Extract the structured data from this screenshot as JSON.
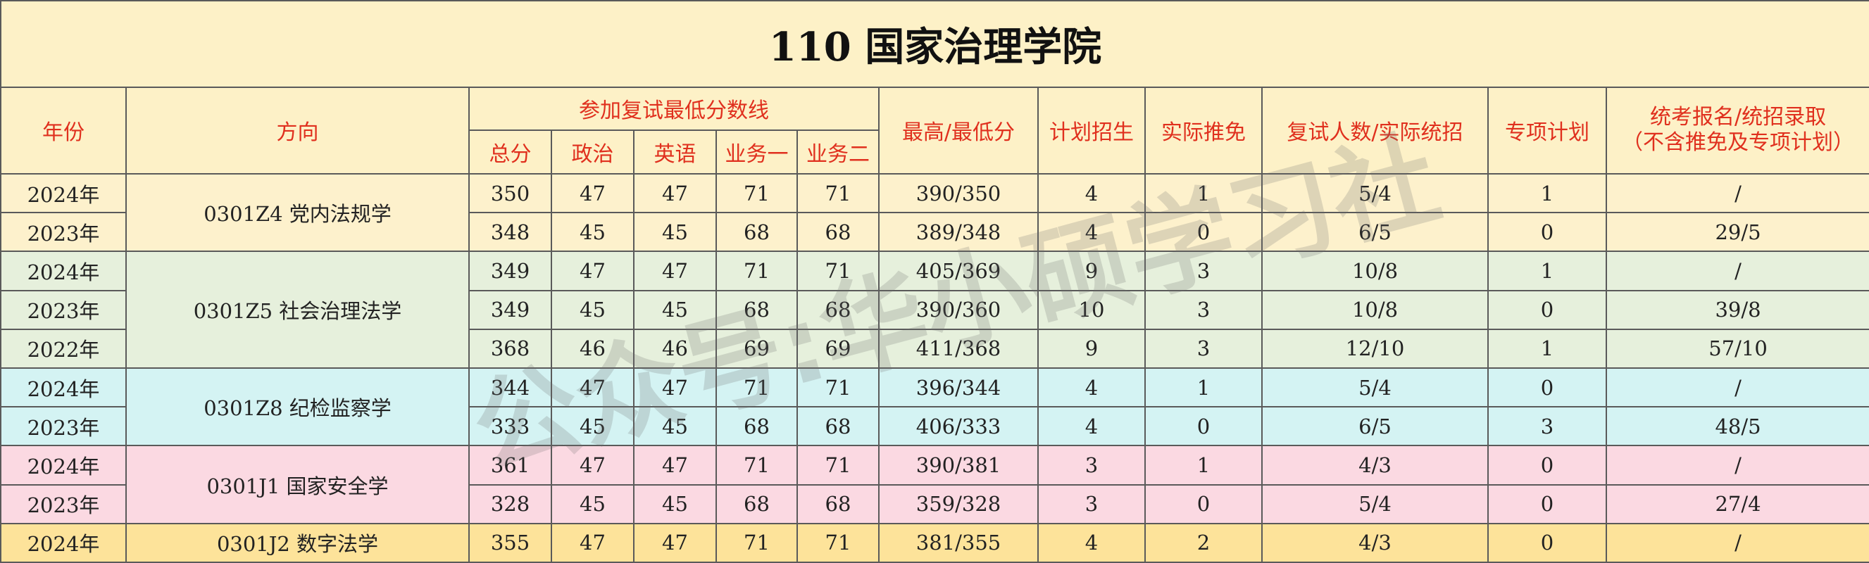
{
  "title": "110  国家治理学院",
  "watermark": "公众号:华小硕学习社",
  "header": {
    "year": "年份",
    "direction": "方向",
    "min_group": "参加复试最低分数线",
    "min_sub": [
      "总分",
      "政治",
      "英语",
      "业务一",
      "业务二"
    ],
    "others": [
      "最高/最低分",
      "计划招生",
      "实际推免",
      "复试人数/实际统招",
      "专项计划"
    ],
    "last": [
      "统考报名/统招录取",
      "（不含推免及专项计划）"
    ]
  },
  "groups": [
    {
      "direction": "0301Z4 党内法规学",
      "rows": [
        [
          "2024年",
          350,
          47,
          47,
          71,
          71,
          "390/350",
          4,
          1,
          "5/4",
          1,
          "/"
        ],
        [
          "2023年",
          348,
          45,
          45,
          68,
          68,
          "389/348",
          4,
          0,
          "6/5",
          0,
          "29/5"
        ]
      ]
    },
    {
      "direction": "0301Z5 社会治理法学",
      "rows": [
        [
          "2024年",
          349,
          47,
          47,
          71,
          71,
          "405/369",
          9,
          3,
          "10/8",
          1,
          "/"
        ],
        [
          "2023年",
          349,
          45,
          45,
          68,
          68,
          "390/360",
          10,
          3,
          "10/8",
          0,
          "39/8"
        ],
        [
          "2022年",
          368,
          46,
          46,
          69,
          69,
          "411/368",
          9,
          3,
          "12/10",
          1,
          "57/10"
        ]
      ]
    },
    {
      "direction": "0301Z8 纪检监察学",
      "rows": [
        [
          "2024年",
          344,
          47,
          47,
          71,
          71,
          "396/344",
          4,
          1,
          "5/4",
          0,
          "/"
        ],
        [
          "2023年",
          333,
          45,
          45,
          68,
          68,
          "406/333",
          4,
          0,
          "6/5",
          3,
          "48/5"
        ]
      ]
    },
    {
      "direction": "0301J1 国家安全学",
      "rows": [
        [
          "2024年",
          361,
          47,
          47,
          71,
          71,
          "390/381",
          3,
          1,
          "4/3",
          0,
          "/"
        ],
        [
          "2023年",
          328,
          45,
          45,
          68,
          68,
          "359/328",
          3,
          0,
          "5/4",
          0,
          "27/4"
        ]
      ]
    },
    {
      "direction": "0301J2 数字法学",
      "rows": [
        [
          "2024年",
          355,
          47,
          47,
          71,
          71,
          "381/355",
          4,
          2,
          "4/3",
          0,
          "/"
        ]
      ]
    }
  ]
}
